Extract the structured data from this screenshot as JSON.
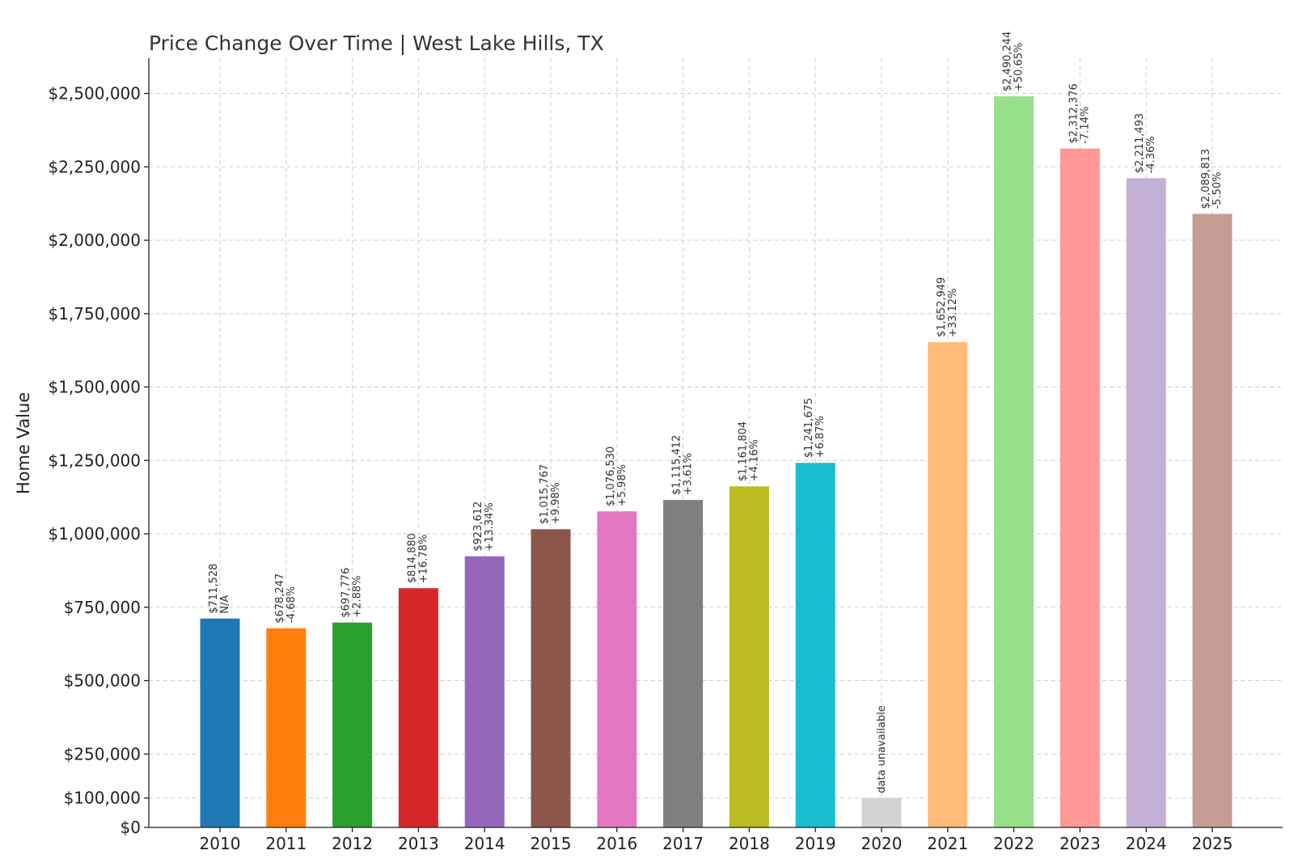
{
  "chart_data": {
    "type": "bar",
    "title": "Price Change Over Time | West Lake Hills, TX",
    "xlabel": "",
    "ylabel": "Home Value",
    "ylim": [
      0,
      2620000
    ],
    "yticks": [
      0,
      100000,
      250000,
      500000,
      750000,
      1000000,
      1250000,
      1500000,
      1750000,
      2000000,
      2250000,
      2500000
    ],
    "ytick_labels": [
      "$0",
      "$100,000",
      "$250,000",
      "$500,000",
      "$750,000",
      "$1,000,000",
      "$1,250,000",
      "$1,500,000",
      "$1,750,000",
      "$2,000,000",
      "$2,250,000",
      "$2,500,000"
    ],
    "grid": true,
    "categories": [
      "2010",
      "2011",
      "2012",
      "2013",
      "2014",
      "2015",
      "2016",
      "2017",
      "2018",
      "2019",
      "2020",
      "2021",
      "2022",
      "2023",
      "2024",
      "2025"
    ],
    "values": [
      711528,
      678247,
      697776,
      814880,
      923612,
      1015767,
      1076530,
      1115412,
      1161804,
      1241675,
      100000,
      1652949,
      2490244,
      2312376,
      2211493,
      2089813
    ],
    "value_labels": [
      "$711,528",
      "$678,247",
      "$697,776",
      "$814,880",
      "$923,612",
      "$1,015,767",
      "$1,076,530",
      "$1,115,412",
      "$1,161,804",
      "$1,241,675",
      "",
      "$1,652,949",
      "$2,490,244",
      "$2,312,376",
      "$2,211,493",
      "$2,089,813"
    ],
    "change_labels": [
      "N/A",
      "-4.68%",
      "+2.88%",
      "+16.78%",
      "+13.34%",
      "+9.98%",
      "+5.98%",
      "+3.61%",
      "+4.16%",
      "+6.87%",
      "data unavailable",
      "+33.12%",
      "+50.65%",
      "-7.14%",
      "-4.36%",
      "-5.50%"
    ],
    "colors": [
      "#1f77b4",
      "#ff7f0e",
      "#2ca02c",
      "#d62728",
      "#9467bd",
      "#8c564b",
      "#e377c2",
      "#7f7f7f",
      "#bcbd22",
      "#17becf",
      "#d3d3d3",
      "#ffbb78",
      "#98df8a",
      "#ff9896",
      "#c5b0d5",
      "#c49c94"
    ]
  }
}
